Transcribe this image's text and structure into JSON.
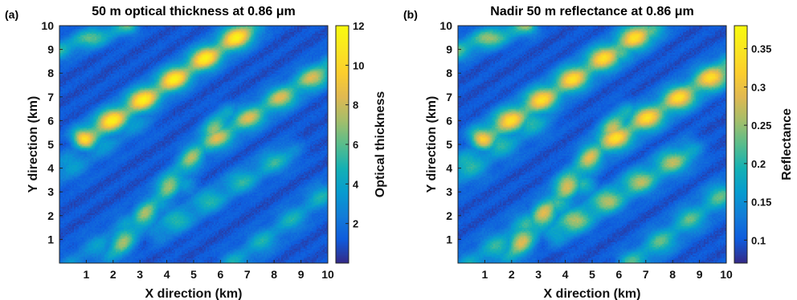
{
  "chart_data": [
    {
      "type": "heatmap",
      "panel_label": "(a)",
      "title": "50 m optical thickness at 0.86 μm",
      "xlabel": "X direction (km)",
      "ylabel": "Y direction (km)",
      "xlim": [
        0,
        10
      ],
      "ylim": [
        0,
        10
      ],
      "xticks": [
        1,
        2,
        3,
        4,
        5,
        6,
        7,
        8,
        9,
        10
      ],
      "yticks": [
        1,
        2,
        3,
        4,
        5,
        6,
        7,
        8,
        9,
        10
      ],
      "colorbar": {
        "label": "Optical thickness",
        "min": 0,
        "max": 12,
        "ticks": [
          2,
          4,
          6,
          8,
          10,
          12
        ],
        "colormap": "parula"
      },
      "features": [
        {
          "x0": 1.0,
          "y0": 5.3,
          "x1": 7.0,
          "y1": 9.8,
          "peak": 11.0,
          "width": 0.35
        },
        {
          "x0": 2.0,
          "y0": 0.4,
          "x1": 6.2,
          "y1": 6.2,
          "peak": 7.0,
          "width": 0.3
        },
        {
          "x0": 5.5,
          "y0": 5.0,
          "x1": 10.0,
          "y1": 8.2,
          "peak": 8.0,
          "width": 0.35
        },
        {
          "x0": 0.0,
          "y0": 9.0,
          "x1": 2.5,
          "y1": 10.0,
          "peak": 6.0,
          "width": 0.3
        },
        {
          "x0": 3.8,
          "y0": 1.4,
          "x1": 8.5,
          "y1": 4.6,
          "peak": 5.0,
          "width": 0.35
        },
        {
          "x0": 6.5,
          "y0": 0.0,
          "x1": 10.0,
          "y1": 3.0,
          "peak": 4.5,
          "width": 0.35
        },
        {
          "x0": 0.0,
          "y0": 3.8,
          "x1": 3.0,
          "y1": 6.2,
          "peak": 3.5,
          "width": 0.45
        },
        {
          "x0": 0.6,
          "y0": 0.0,
          "x1": 4.6,
          "y1": 3.2,
          "peak": 3.5,
          "width": 0.4
        },
        {
          "x0": 6.0,
          "y0": 8.8,
          "x1": 7.5,
          "y1": 10.0,
          "peak": 4.0,
          "width": 0.3
        }
      ]
    },
    {
      "type": "heatmap",
      "panel_label": "(b)",
      "title": "Nadir 50 m reflectance at 0.86 μm",
      "xlabel": "X direction (km)",
      "ylabel": "Y direction (km)",
      "xlim": [
        0,
        10
      ],
      "ylim": [
        0,
        10
      ],
      "xticks": [
        1,
        2,
        3,
        4,
        5,
        6,
        7,
        8,
        9,
        10
      ],
      "yticks": [
        1,
        2,
        3,
        4,
        5,
        6,
        7,
        8,
        9,
        10
      ],
      "colorbar": {
        "label": "Reflectance",
        "min": 0.07,
        "max": 0.38,
        "ticks": [
          0.1,
          0.15,
          0.2,
          0.25,
          0.3,
          0.35
        ],
        "colormap": "parula"
      },
      "features": [
        {
          "x0": 1.0,
          "y0": 5.3,
          "x1": 7.0,
          "y1": 9.8,
          "peak": 0.33,
          "width": 0.38
        },
        {
          "x0": 2.0,
          "y0": 0.4,
          "x1": 6.2,
          "y1": 6.2,
          "peak": 0.28,
          "width": 0.33
        },
        {
          "x0": 5.5,
          "y0": 5.0,
          "x1": 10.0,
          "y1": 8.2,
          "peak": 0.33,
          "width": 0.38
        },
        {
          "x0": 0.0,
          "y0": 9.0,
          "x1": 2.5,
          "y1": 10.0,
          "peak": 0.25,
          "width": 0.32
        },
        {
          "x0": 3.8,
          "y0": 1.4,
          "x1": 8.5,
          "y1": 4.6,
          "peak": 0.26,
          "width": 0.38
        },
        {
          "x0": 6.5,
          "y0": 0.0,
          "x1": 10.0,
          "y1": 3.0,
          "peak": 0.22,
          "width": 0.38
        },
        {
          "x0": 0.0,
          "y0": 3.8,
          "x1": 3.0,
          "y1": 6.2,
          "peak": 0.2,
          "width": 0.48
        },
        {
          "x0": 0.6,
          "y0": 0.0,
          "x1": 4.6,
          "y1": 3.2,
          "peak": 0.2,
          "width": 0.42
        },
        {
          "x0": 6.0,
          "y0": 8.8,
          "x1": 7.5,
          "y1": 10.0,
          "peak": 0.22,
          "width": 0.32
        }
      ]
    }
  ]
}
